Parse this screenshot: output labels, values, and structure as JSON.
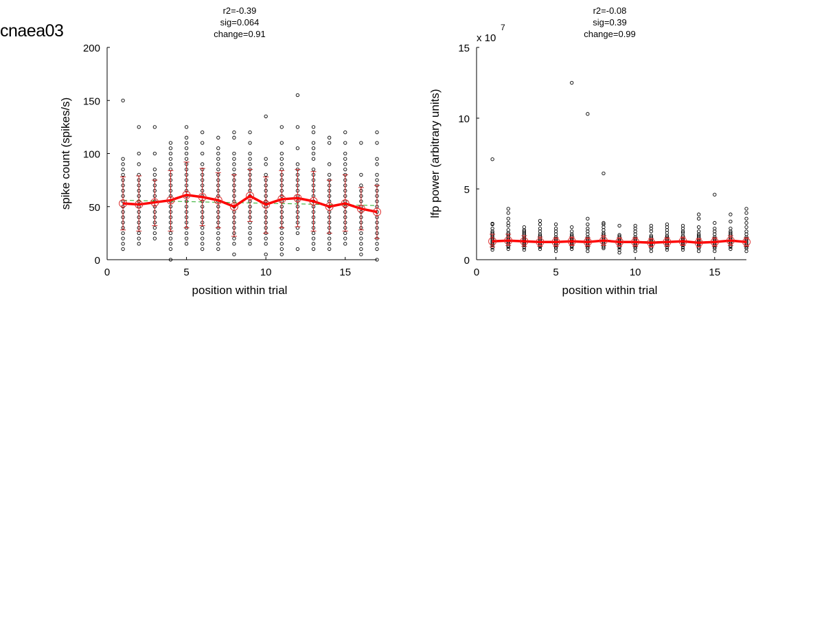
{
  "page_label": "cnaea03",
  "chart_data": [
    {
      "type": "scatter",
      "title_lines": [
        "r2=-0.39",
        "sig=0.064",
        "change=0.91"
      ],
      "xlabel": "position within trial",
      "ylabel": "spike count (spikes/s)",
      "exponent_label": "",
      "xlim": [
        0,
        17
      ],
      "ylim": [
        0,
        200
      ],
      "xticks": [
        "0",
        "5",
        "10",
        "15"
      ],
      "xtick_values": [
        0,
        5,
        10,
        15
      ],
      "yticks": [
        "0",
        "50",
        "100",
        "150",
        "200"
      ],
      "ytick_values": [
        0,
        50,
        100,
        150,
        200
      ],
      "grid": false,
      "colors": {
        "points": "#000000",
        "mean_line": "#ff0000",
        "mean_marker": "#dd3333",
        "error_bars": "#cc2222",
        "fit_line": "#22aa22"
      },
      "series": [
        {
          "name": "mean",
          "x": [
            1,
            2,
            3,
            4,
            5,
            6,
            7,
            8,
            9,
            10,
            11,
            12,
            13,
            14,
            15,
            16,
            17
          ],
          "y": [
            53,
            52,
            54,
            56,
            61,
            59,
            56,
            50,
            60,
            52,
            57,
            58,
            55,
            50,
            53,
            48,
            45
          ]
        }
      ],
      "error_bars": [
        {
          "x": 1,
          "low": 28,
          "high": 78
        },
        {
          "x": 2,
          "low": 27,
          "high": 79
        },
        {
          "x": 3,
          "low": 32,
          "high": 75
        },
        {
          "x": 4,
          "low": 27,
          "high": 84
        },
        {
          "x": 5,
          "low": 30,
          "high": 92
        },
        {
          "x": 6,
          "low": 32,
          "high": 86
        },
        {
          "x": 7,
          "low": 30,
          "high": 82
        },
        {
          "x": 8,
          "low": 22,
          "high": 80
        },
        {
          "x": 9,
          "low": 36,
          "high": 85
        },
        {
          "x": 10,
          "low": 25,
          "high": 78
        },
        {
          "x": 11,
          "low": 30,
          "high": 84
        },
        {
          "x": 12,
          "low": 31,
          "high": 85
        },
        {
          "x": 13,
          "low": 27,
          "high": 83
        },
        {
          "x": 14,
          "low": 25,
          "high": 75
        },
        {
          "x": 15,
          "low": 27,
          "high": 80
        },
        {
          "x": 16,
          "low": 28,
          "high": 68
        },
        {
          "x": 17,
          "low": 20,
          "high": 70
        }
      ],
      "fit_line": {
        "x": [
          1,
          17
        ],
        "y": [
          56,
          51
        ]
      },
      "points": [
        {
          "x": 1,
          "y": [
            10,
            15,
            20,
            25,
            30,
            35,
            40,
            45,
            50,
            55,
            60,
            65,
            70,
            75,
            80,
            85,
            90,
            95,
            150
          ]
        },
        {
          "x": 2,
          "y": [
            15,
            20,
            25,
            30,
            35,
            40,
            45,
            50,
            55,
            60,
            65,
            70,
            75,
            80,
            90,
            100,
            125
          ]
        },
        {
          "x": 3,
          "y": [
            20,
            25,
            30,
            35,
            40,
            45,
            50,
            55,
            60,
            65,
            70,
            75,
            80,
            85,
            100,
            125
          ]
        },
        {
          "x": 4,
          "y": [
            0,
            10,
            15,
            20,
            25,
            30,
            35,
            40,
            45,
            50,
            55,
            60,
            65,
            70,
            75,
            80,
            85,
            90,
            95,
            100,
            105,
            110
          ]
        },
        {
          "x": 5,
          "y": [
            15,
            20,
            25,
            30,
            35,
            40,
            45,
            50,
            55,
            60,
            65,
            70,
            75,
            80,
            85,
            90,
            95,
            100,
            105,
            110,
            115,
            125
          ]
        },
        {
          "x": 6,
          "y": [
            10,
            15,
            20,
            25,
            30,
            35,
            40,
            45,
            50,
            55,
            60,
            65,
            70,
            75,
            80,
            85,
            90,
            100,
            110,
            120
          ]
        },
        {
          "x": 7,
          "y": [
            10,
            15,
            20,
            25,
            30,
            35,
            40,
            45,
            50,
            55,
            60,
            65,
            70,
            75,
            80,
            85,
            90,
            95,
            100,
            105,
            115
          ]
        },
        {
          "x": 8,
          "y": [
            5,
            15,
            20,
            25,
            30,
            35,
            40,
            45,
            50,
            55,
            60,
            65,
            70,
            75,
            80,
            85,
            90,
            95,
            100,
            115,
            120
          ]
        },
        {
          "x": 9,
          "y": [
            15,
            20,
            25,
            30,
            35,
            40,
            45,
            50,
            55,
            60,
            65,
            70,
            75,
            80,
            85,
            90,
            95,
            100,
            110,
            120
          ]
        },
        {
          "x": 10,
          "y": [
            5,
            15,
            20,
            25,
            30,
            35,
            40,
            45,
            50,
            55,
            60,
            65,
            70,
            75,
            80,
            90,
            95,
            135
          ]
        },
        {
          "x": 11,
          "y": [
            5,
            10,
            15,
            20,
            25,
            30,
            35,
            40,
            45,
            50,
            55,
            60,
            65,
            70,
            75,
            80,
            85,
            90,
            95,
            100,
            110,
            125
          ]
        },
        {
          "x": 12,
          "y": [
            10,
            25,
            30,
            35,
            40,
            45,
            50,
            55,
            60,
            65,
            70,
            75,
            80,
            85,
            90,
            105,
            125,
            155
          ]
        },
        {
          "x": 13,
          "y": [
            10,
            15,
            20,
            25,
            30,
            35,
            40,
            45,
            50,
            55,
            60,
            65,
            70,
            75,
            80,
            85,
            95,
            100,
            105,
            110,
            120,
            125
          ]
        },
        {
          "x": 14,
          "y": [
            10,
            15,
            20,
            25,
            30,
            35,
            40,
            45,
            50,
            55,
            60,
            65,
            70,
            75,
            80,
            90,
            110,
            115
          ]
        },
        {
          "x": 15,
          "y": [
            15,
            20,
            25,
            30,
            35,
            40,
            45,
            50,
            55,
            60,
            65,
            70,
            75,
            80,
            85,
            90,
            95,
            100,
            110,
            120
          ]
        },
        {
          "x": 16,
          "y": [
            5,
            10,
            15,
            20,
            25,
            30,
            35,
            40,
            45,
            50,
            55,
            60,
            65,
            70,
            80,
            110
          ]
        },
        {
          "x": 17,
          "y": [
            0,
            10,
            15,
            20,
            25,
            30,
            35,
            40,
            45,
            50,
            55,
            60,
            65,
            70,
            75,
            80,
            90,
            95,
            110,
            120
          ]
        }
      ]
    },
    {
      "type": "scatter",
      "title_lines": [
        "r2=-0.08",
        "sig=0.39",
        "change=0.99"
      ],
      "xlabel": "position within trial",
      "ylabel": "lfp power (arbitrary units)",
      "exponent_label": "x 10",
      "exponent_power": "7",
      "xlim": [
        0,
        17
      ],
      "ylim": [
        0,
        15
      ],
      "xticks": [
        "0",
        "5",
        "10",
        "15"
      ],
      "xtick_values": [
        0,
        5,
        10,
        15
      ],
      "yticks": [
        "0",
        "5",
        "10",
        "15"
      ],
      "ytick_values": [
        0,
        5,
        10,
        15
      ],
      "grid": false,
      "colors": {
        "points": "#000000",
        "mean_line": "#ff0000",
        "mean_marker": "#dd3333",
        "error_bars": "#cc2222",
        "fit_line": "#22aa22"
      },
      "series": [
        {
          "name": "mean",
          "x": [
            1,
            2,
            3,
            4,
            5,
            6,
            7,
            8,
            9,
            10,
            11,
            12,
            13,
            14,
            15,
            16,
            17
          ],
          "y": [
            1.3,
            1.35,
            1.3,
            1.25,
            1.25,
            1.3,
            1.25,
            1.35,
            1.25,
            1.25,
            1.2,
            1.25,
            1.3,
            1.2,
            1.25,
            1.35,
            1.25
          ]
        }
      ],
      "error_bars": [
        {
          "x": 1,
          "low": 0.9,
          "high": 1.8
        },
        {
          "x": 2,
          "low": 1.0,
          "high": 1.8
        },
        {
          "x": 3,
          "low": 0.95,
          "high": 1.7
        },
        {
          "x": 4,
          "low": 0.95,
          "high": 1.6
        },
        {
          "x": 5,
          "low": 0.95,
          "high": 1.55
        },
        {
          "x": 6,
          "low": 1.0,
          "high": 1.6
        },
        {
          "x": 7,
          "low": 0.95,
          "high": 1.55
        },
        {
          "x": 8,
          "low": 1.0,
          "high": 1.7
        },
        {
          "x": 9,
          "low": 0.95,
          "high": 1.55
        },
        {
          "x": 10,
          "low": 0.95,
          "high": 1.55
        },
        {
          "x": 11,
          "low": 0.9,
          "high": 1.5
        },
        {
          "x": 12,
          "low": 0.95,
          "high": 1.55
        },
        {
          "x": 13,
          "low": 1.0,
          "high": 1.6
        },
        {
          "x": 14,
          "low": 0.9,
          "high": 1.5
        },
        {
          "x": 15,
          "low": 0.95,
          "high": 1.55
        },
        {
          "x": 16,
          "low": 1.0,
          "high": 1.7
        },
        {
          "x": 17,
          "low": 0.95,
          "high": 1.55
        }
      ],
      "fit_line": {
        "x": [
          1,
          17
        ],
        "y": [
          1.3,
          1.27
        ]
      },
      "points": [
        {
          "x": 1,
          "y": [
            0.7,
            0.85,
            1.0,
            1.1,
            1.2,
            1.3,
            1.4,
            1.5,
            1.6,
            1.7,
            1.8,
            1.9,
            2.0,
            2.2,
            2.5,
            2.55,
            7.1
          ]
        },
        {
          "x": 2,
          "y": [
            0.75,
            0.9,
            1.0,
            1.1,
            1.2,
            1.3,
            1.4,
            1.5,
            1.6,
            1.7,
            1.8,
            1.9,
            2.1,
            2.4,
            2.6,
            2.9,
            3.3,
            3.6
          ]
        },
        {
          "x": 3,
          "y": [
            0.7,
            0.85,
            1.0,
            1.1,
            1.2,
            1.3,
            1.4,
            1.5,
            1.6,
            1.7,
            1.8,
            1.9,
            2.0,
            2.1,
            2.3
          ]
        },
        {
          "x": 4,
          "y": [
            0.75,
            0.9,
            1.0,
            1.1,
            1.2,
            1.3,
            1.4,
            1.5,
            1.6,
            1.7,
            1.8,
            2.0,
            2.2,
            2.5,
            2.75
          ]
        },
        {
          "x": 5,
          "y": [
            0.6,
            0.8,
            0.9,
            1.0,
            1.1,
            1.2,
            1.3,
            1.4,
            1.5,
            1.6,
            1.8,
            2.0,
            2.2,
            2.5
          ]
        },
        {
          "x": 6,
          "y": [
            0.75,
            0.9,
            1.0,
            1.1,
            1.2,
            1.3,
            1.4,
            1.5,
            1.6,
            1.7,
            1.8,
            2.0,
            2.3,
            12.5
          ]
        },
        {
          "x": 7,
          "y": [
            0.6,
            0.8,
            0.9,
            1.0,
            1.1,
            1.2,
            1.3,
            1.4,
            1.5,
            1.6,
            1.8,
            2.0,
            2.2,
            2.5,
            2.9,
            10.3
          ]
        },
        {
          "x": 8,
          "y": [
            0.8,
            0.9,
            1.0,
            1.1,
            1.2,
            1.3,
            1.4,
            1.5,
            1.6,
            1.7,
            1.8,
            1.9,
            2.1,
            2.3,
            2.5,
            2.6,
            6.1
          ]
        },
        {
          "x": 9,
          "y": [
            0.5,
            0.7,
            0.85,
            0.95,
            1.05,
            1.15,
            1.25,
            1.35,
            1.45,
            1.55,
            1.65,
            1.75,
            2.4
          ]
        },
        {
          "x": 10,
          "y": [
            0.6,
            0.8,
            0.9,
            1.0,
            1.1,
            1.2,
            1.3,
            1.4,
            1.5,
            1.6,
            1.8,
            2.0,
            2.2,
            2.4
          ]
        },
        {
          "x": 11,
          "y": [
            0.6,
            0.8,
            0.9,
            1.0,
            1.1,
            1.2,
            1.3,
            1.4,
            1.5,
            1.6,
            1.7,
            2.0,
            2.2,
            2.4
          ]
        },
        {
          "x": 12,
          "y": [
            0.7,
            0.85,
            1.0,
            1.1,
            1.2,
            1.3,
            1.4,
            1.5,
            1.6,
            1.7,
            1.9,
            2.1,
            2.3,
            2.5
          ]
        },
        {
          "x": 13,
          "y": [
            0.7,
            0.85,
            1.0,
            1.1,
            1.2,
            1.3,
            1.4,
            1.5,
            1.6,
            1.7,
            1.9,
            2.0,
            2.2,
            2.4
          ]
        },
        {
          "x": 14,
          "y": [
            0.6,
            0.8,
            0.9,
            1.0,
            1.1,
            1.2,
            1.3,
            1.4,
            1.5,
            1.6,
            1.7,
            1.8,
            2.0,
            2.3,
            2.9,
            3.2
          ]
        },
        {
          "x": 15,
          "y": [
            0.6,
            0.8,
            0.9,
            1.0,
            1.1,
            1.2,
            1.3,
            1.4,
            1.5,
            1.6,
            1.8,
            2.0,
            2.2,
            2.6,
            4.6
          ]
        },
        {
          "x": 16,
          "y": [
            0.75,
            0.9,
            1.0,
            1.1,
            1.2,
            1.3,
            1.4,
            1.5,
            1.6,
            1.7,
            1.8,
            1.9,
            2.0,
            2.2,
            2.7,
            3.2
          ]
        },
        {
          "x": 17,
          "y": [
            0.6,
            0.8,
            0.9,
            1.0,
            1.1,
            1.2,
            1.3,
            1.4,
            1.5,
            1.6,
            1.8,
            2.0,
            2.3,
            2.6,
            2.9,
            3.3,
            3.6
          ]
        }
      ]
    }
  ]
}
